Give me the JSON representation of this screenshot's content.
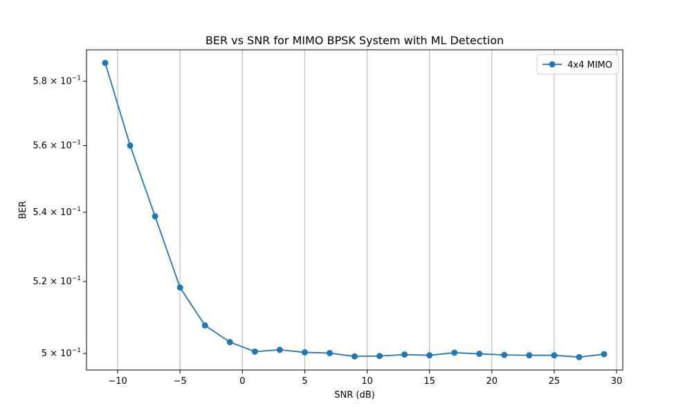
{
  "chart_data": {
    "type": "line",
    "title": "BER vs SNR for MIMO BPSK System with ML Detection",
    "xlabel": "SNR (dB)",
    "ylabel": "BER",
    "y_scale": "log",
    "xlim": [
      -12.5,
      30.5
    ],
    "ylim": [
      0.4955,
      0.59
    ],
    "x_ticks": [
      -10,
      -5,
      0,
      5,
      10,
      15,
      20,
      25,
      30
    ],
    "x_tick_labels": [
      "−10",
      "−5",
      "0",
      "5",
      "10",
      "15",
      "20",
      "25",
      "30"
    ],
    "y_ticks": [
      {
        "value": 0.5,
        "mantissa": "5",
        "exponent": "−1"
      },
      {
        "value": 0.52,
        "mantissa": "5.2",
        "exponent": "−1"
      },
      {
        "value": 0.54,
        "mantissa": "5.4",
        "exponent": "−1"
      },
      {
        "value": 0.56,
        "mantissa": "5.6",
        "exponent": "−1"
      },
      {
        "value": 0.58,
        "mantissa": "5.8",
        "exponent": "−1"
      }
    ],
    "grid": {
      "x": true,
      "y": false
    },
    "legend_position": "top-right",
    "series": [
      {
        "name": "4x4 MIMO",
        "color": "#1f77b4",
        "x": [
          -11,
          -9,
          -7,
          -5,
          -3,
          -1,
          1,
          3,
          5,
          7,
          9,
          11,
          13,
          15,
          17,
          19,
          21,
          23,
          25,
          27,
          29
        ],
        "y": [
          0.5858,
          0.56,
          0.5388,
          0.5183,
          0.5077,
          0.5031,
          0.5005,
          0.501,
          0.5003,
          0.5001,
          0.4992,
          0.4993,
          0.4997,
          0.4995,
          0.5002,
          0.4999,
          0.4996,
          0.4995,
          0.4995,
          0.499,
          0.4998
        ]
      }
    ]
  }
}
